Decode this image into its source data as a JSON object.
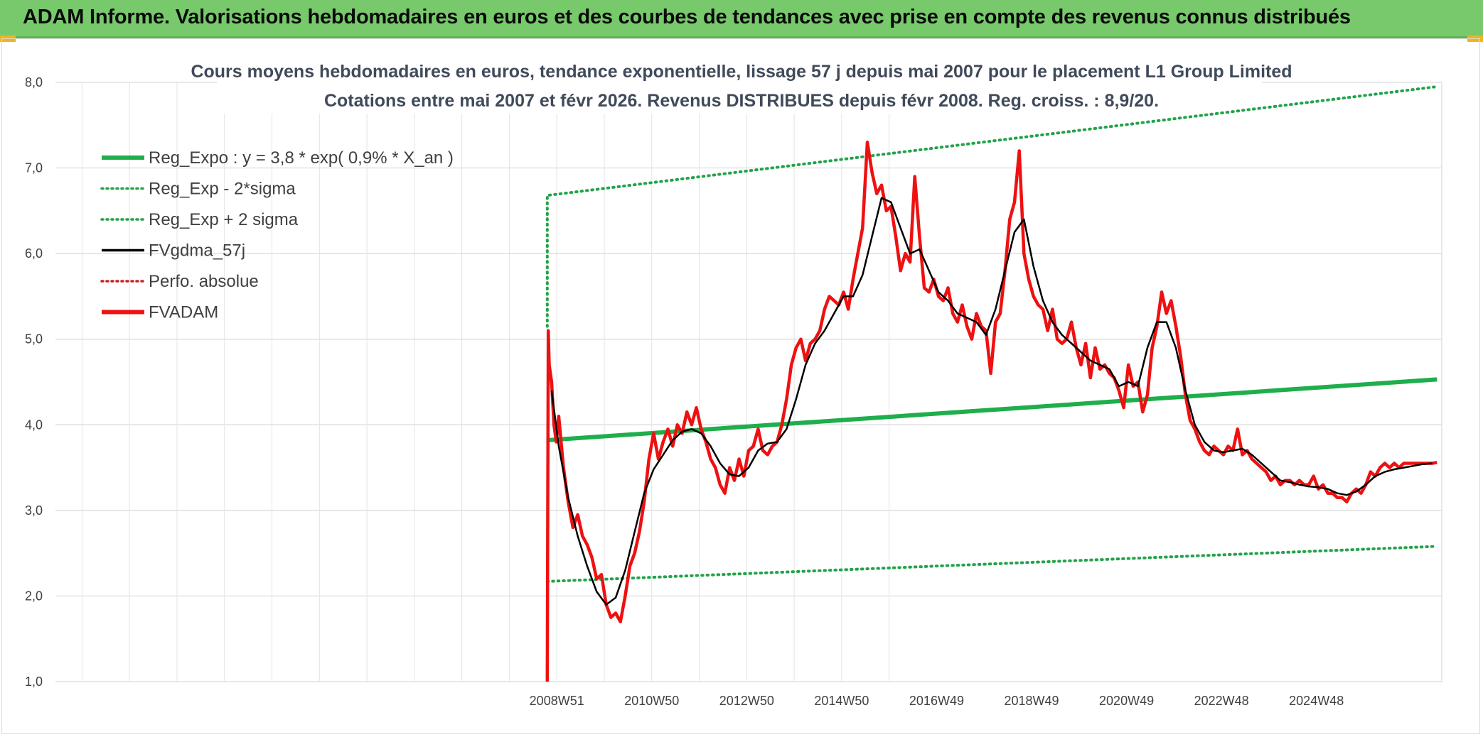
{
  "banner": {
    "title": "ADAM Informe. Valorisations hebdomadaires en euros et des courbes de tendances avec prise en compte des revenus connus distribués"
  },
  "colors": {
    "banner_bg": "#77c96b",
    "regression": "#1fae4b",
    "sigma_band": "#22a34a",
    "smoothed": "#000000",
    "price": "#ee1111",
    "perf_absolue": "#cc2222"
  },
  "chart_data": {
    "type": "line",
    "title_line1": "Cours moyens hebdomadaires en euros, tendance exponentielle, lissage 57 j depuis mai 2007 pour le placement L1 Group Limited",
    "title_line2": "Cotations entre mai 2007 et févr 2026. Revenus DISTRIBUES depuis févr 2008. Reg. croiss. : 8,9/20.",
    "ylim": [
      1.0,
      8.0
    ],
    "y_ticks": [
      "1,0",
      "2,0",
      "3,0",
      "4,0",
      "5,0",
      "6,0",
      "7,0",
      "8,0"
    ],
    "x_tick_labels": [
      "2008W51",
      "2010W50",
      "2012W50",
      "2014W50",
      "2016W49",
      "2018W49",
      "2020W49",
      "2022W48",
      "2024W48"
    ],
    "x_tick_years": [
      2008.96,
      2010.96,
      2012.96,
      2014.96,
      2016.96,
      2018.96,
      2020.96,
      2022.96,
      2024.96
    ],
    "xlim": [
      1998.4,
      2027.6
    ],
    "grid": true,
    "legend_placement": "top-left",
    "legend": [
      {
        "key": "reg_expo",
        "label": "Reg_Expo : y = 3,8 * exp( 0,9% *  X_an )",
        "style": "solid-thick",
        "color": "#1fae4b"
      },
      {
        "key": "reg_minus",
        "label": "Reg_Exp - 2*sigma",
        "style": "dotted",
        "color": "#22a34a"
      },
      {
        "key": "reg_plus",
        "label": "Reg_Exp + 2 sigma",
        "style": "dotted",
        "color": "#22a34a"
      },
      {
        "key": "fvgdma",
        "label": "FVgdma_57j",
        "style": "solid",
        "color": "#000000"
      },
      {
        "key": "perfo",
        "label": "Perfo. absolue",
        "style": "dotted",
        "color": "#cc2222"
      },
      {
        "key": "fvadam",
        "label": "FVADAM",
        "style": "solid-thick",
        "color": "#ee1111"
      }
    ],
    "series": [
      {
        "name": "Reg_Expo : y = 3,8 * exp( 0,9% *  X_an )",
        "x": [
          2008.76,
          2027.5
        ],
        "y": [
          3.82,
          4.53
        ]
      },
      {
        "name": "Reg_Exp - 2*sigma",
        "x": [
          2008.76,
          2027.5
        ],
        "y": [
          2.17,
          2.58
        ]
      },
      {
        "name": "Reg_Exp + 2 sigma",
        "x": [
          2008.76,
          2008.76,
          2027.5
        ],
        "y": [
          5.15,
          6.68,
          7.95
        ]
      },
      {
        "name": "FVgdma_57j",
        "x": [
          2008.85,
          2009.0,
          2009.2,
          2009.4,
          2009.6,
          2009.8,
          2010.0,
          2010.2,
          2010.4,
          2010.6,
          2010.8,
          2011.0,
          2011.2,
          2011.4,
          2011.6,
          2011.8,
          2012.0,
          2012.2,
          2012.4,
          2012.6,
          2012.8,
          2013.0,
          2013.2,
          2013.4,
          2013.6,
          2013.8,
          2014.0,
          2014.2,
          2014.4,
          2014.6,
          2014.8,
          2015.0,
          2015.2,
          2015.4,
          2015.6,
          2015.8,
          2016.0,
          2016.2,
          2016.4,
          2016.6,
          2016.8,
          2017.0,
          2017.2,
          2017.4,
          2017.6,
          2017.8,
          2018.0,
          2018.2,
          2018.4,
          2018.6,
          2018.8,
          2019.0,
          2019.2,
          2019.4,
          2019.6,
          2019.8,
          2020.0,
          2020.2,
          2020.4,
          2020.6,
          2020.8,
          2021.0,
          2021.2,
          2021.4,
          2021.6,
          2021.8,
          2022.0,
          2022.2,
          2022.4,
          2022.6,
          2022.8,
          2023.0,
          2023.2,
          2023.4,
          2023.6,
          2023.8,
          2024.0,
          2024.2,
          2024.4,
          2024.6,
          2024.8,
          2025.0,
          2025.2,
          2025.4,
          2025.6,
          2025.8,
          2026.0,
          2026.2,
          2026.4,
          2026.6,
          2026.8,
          2027.0,
          2027.2,
          2027.4
        ],
        "y": [
          4.4,
          3.75,
          3.15,
          2.7,
          2.35,
          2.05,
          1.9,
          1.98,
          2.3,
          2.75,
          3.2,
          3.48,
          3.65,
          3.82,
          3.92,
          3.95,
          3.9,
          3.75,
          3.55,
          3.42,
          3.4,
          3.5,
          3.7,
          3.78,
          3.8,
          3.95,
          4.3,
          4.7,
          4.95,
          5.1,
          5.3,
          5.5,
          5.5,
          5.75,
          6.2,
          6.65,
          6.6,
          6.3,
          6.0,
          6.05,
          5.8,
          5.55,
          5.45,
          5.3,
          5.25,
          5.2,
          5.05,
          5.35,
          5.8,
          6.25,
          6.4,
          5.85,
          5.45,
          5.2,
          5.05,
          4.95,
          4.85,
          4.75,
          4.7,
          4.65,
          4.45,
          4.5,
          4.45,
          4.9,
          5.2,
          5.2,
          4.9,
          4.4,
          4.0,
          3.8,
          3.7,
          3.68,
          3.7,
          3.72,
          3.65,
          3.55,
          3.45,
          3.35,
          3.33,
          3.3,
          3.28,
          3.27,
          3.25,
          3.2,
          3.18,
          3.22,
          3.3,
          3.4,
          3.45,
          3.48,
          3.5,
          3.52,
          3.54,
          3.55
        ]
      },
      {
        "name": "FVADAM",
        "x": [
          2008.76,
          2008.78,
          2008.8,
          2008.85,
          2008.9,
          2008.95,
          2009.0,
          2009.1,
          2009.2,
          2009.3,
          2009.4,
          2009.5,
          2009.6,
          2009.7,
          2009.8,
          2009.9,
          2010.0,
          2010.1,
          2010.2,
          2010.3,
          2010.4,
          2010.5,
          2010.6,
          2010.7,
          2010.8,
          2010.9,
          2011.0,
          2011.1,
          2011.2,
          2011.3,
          2011.4,
          2011.5,
          2011.6,
          2011.7,
          2011.8,
          2011.9,
          2012.0,
          2012.1,
          2012.2,
          2012.3,
          2012.4,
          2012.5,
          2012.6,
          2012.7,
          2012.8,
          2012.9,
          2013.0,
          2013.1,
          2013.2,
          2013.3,
          2013.4,
          2013.5,
          2013.6,
          2013.7,
          2013.8,
          2013.9,
          2014.0,
          2014.1,
          2014.2,
          2014.3,
          2014.4,
          2014.5,
          2014.6,
          2014.7,
          2014.8,
          2014.9,
          2015.0,
          2015.1,
          2015.2,
          2015.3,
          2015.4,
          2015.5,
          2015.6,
          2015.7,
          2015.8,
          2015.9,
          2016.0,
          2016.1,
          2016.2,
          2016.3,
          2016.4,
          2016.5,
          2016.6,
          2016.7,
          2016.8,
          2016.9,
          2017.0,
          2017.1,
          2017.2,
          2017.3,
          2017.4,
          2017.5,
          2017.6,
          2017.7,
          2017.8,
          2017.9,
          2018.0,
          2018.1,
          2018.2,
          2018.3,
          2018.4,
          2018.5,
          2018.6,
          2018.7,
          2018.8,
          2018.9,
          2019.0,
          2019.1,
          2019.2,
          2019.3,
          2019.4,
          2019.5,
          2019.6,
          2019.7,
          2019.8,
          2019.9,
          2020.0,
          2020.1,
          2020.2,
          2020.3,
          2020.4,
          2020.5,
          2020.6,
          2020.7,
          2020.8,
          2020.9,
          2021.0,
          2021.1,
          2021.2,
          2021.3,
          2021.4,
          2021.5,
          2021.6,
          2021.7,
          2021.8,
          2021.9,
          2022.0,
          2022.1,
          2022.2,
          2022.3,
          2022.4,
          2022.5,
          2022.6,
          2022.7,
          2022.8,
          2022.9,
          2023.0,
          2023.1,
          2023.2,
          2023.3,
          2023.4,
          2023.5,
          2023.6,
          2023.7,
          2023.8,
          2023.9,
          2024.0,
          2024.1,
          2024.2,
          2024.3,
          2024.4,
          2024.5,
          2024.6,
          2024.7,
          2024.8,
          2024.9,
          2025.0,
          2025.1,
          2025.2,
          2025.3,
          2025.4,
          2025.5,
          2025.6,
          2025.7,
          2025.8,
          2025.9,
          2026.0,
          2026.1,
          2026.2,
          2026.3,
          2026.4,
          2026.5,
          2026.6,
          2026.7,
          2026.8,
          2026.9,
          2027.0,
          2027.1,
          2027.2,
          2027.3,
          2027.4,
          2027.5
        ],
        "y": [
          1.0,
          5.1,
          4.7,
          4.5,
          4.0,
          3.8,
          4.1,
          3.5,
          3.1,
          2.8,
          2.95,
          2.7,
          2.6,
          2.45,
          2.2,
          2.25,
          1.9,
          1.75,
          1.8,
          1.7,
          2.0,
          2.35,
          2.5,
          2.75,
          3.1,
          3.6,
          3.9,
          3.6,
          3.8,
          3.95,
          3.75,
          4.0,
          3.9,
          4.15,
          4.0,
          4.2,
          3.95,
          3.8,
          3.6,
          3.5,
          3.3,
          3.2,
          3.5,
          3.35,
          3.6,
          3.4,
          3.7,
          3.75,
          3.95,
          3.7,
          3.65,
          3.75,
          3.8,
          4.0,
          4.3,
          4.7,
          4.9,
          5.0,
          4.75,
          4.95,
          5.0,
          5.1,
          5.35,
          5.5,
          5.45,
          5.4,
          5.55,
          5.35,
          5.7,
          6.0,
          6.3,
          7.3,
          6.95,
          6.7,
          6.8,
          6.5,
          6.55,
          6.2,
          5.8,
          6.0,
          5.9,
          6.9,
          6.2,
          5.6,
          5.55,
          5.7,
          5.5,
          5.45,
          5.6,
          5.3,
          5.2,
          5.4,
          5.15,
          5.0,
          5.3,
          5.15,
          5.1,
          4.6,
          5.2,
          5.3,
          5.8,
          6.4,
          6.6,
          7.2,
          6.0,
          5.7,
          5.5,
          5.4,
          5.35,
          5.1,
          5.35,
          5.0,
          4.95,
          5.0,
          5.2,
          4.9,
          4.7,
          4.95,
          4.55,
          4.9,
          4.65,
          4.7,
          4.6,
          4.55,
          4.4,
          4.2,
          4.7,
          4.45,
          4.5,
          4.15,
          4.35,
          4.9,
          5.15,
          5.55,
          5.3,
          5.45,
          5.15,
          4.8,
          4.35,
          4.05,
          3.95,
          3.8,
          3.7,
          3.65,
          3.75,
          3.7,
          3.65,
          3.75,
          3.7,
          3.95,
          3.65,
          3.7,
          3.6,
          3.55,
          3.5,
          3.45,
          3.35,
          3.4,
          3.3,
          3.35,
          3.35,
          3.3,
          3.35,
          3.3,
          3.3,
          3.4,
          3.25,
          3.3,
          3.2,
          3.2,
          3.15,
          3.15,
          3.1,
          3.2,
          3.25,
          3.2,
          3.3,
          3.45,
          3.4,
          3.5,
          3.55,
          3.5,
          3.55,
          3.5,
          3.55,
          3.55,
          3.55,
          3.55,
          3.55,
          3.55,
          3.55,
          3.56
        ]
      }
    ]
  }
}
